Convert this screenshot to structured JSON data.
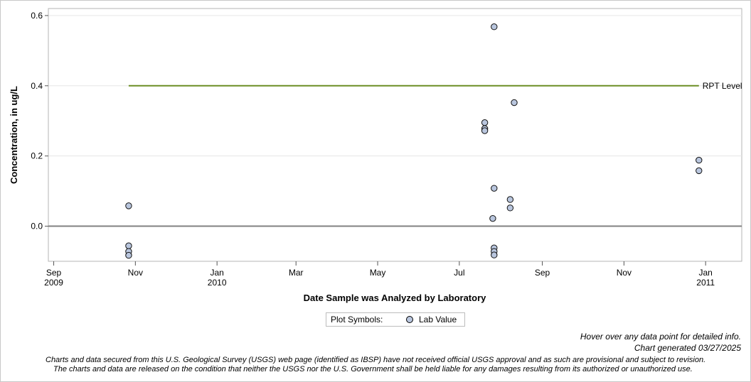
{
  "chart_data": {
    "type": "scatter",
    "title": "",
    "xlabel": "Date Sample was Analyzed by Laboratory",
    "ylabel": "Concentration, in ug/L",
    "x_range": [
      "2009-08-28",
      "2011-01-28"
    ],
    "ylim": [
      -0.1,
      0.62
    ],
    "y_ticks": [
      "0.0",
      "0.2",
      "0.4",
      "0.6"
    ],
    "y_tick_values": [
      0.0,
      0.2,
      0.4,
      0.6
    ],
    "x_ticks": [
      {
        "date": "2009-09-01",
        "line1": "Sep",
        "line2": "2009"
      },
      {
        "date": "2009-11-01",
        "line1": "Nov",
        "line2": ""
      },
      {
        "date": "2010-01-01",
        "line1": "Jan",
        "line2": "2010"
      },
      {
        "date": "2010-03-01",
        "line1": "Mar",
        "line2": ""
      },
      {
        "date": "2010-05-01",
        "line1": "May",
        "line2": ""
      },
      {
        "date": "2010-07-01",
        "line1": "Jul",
        "line2": ""
      },
      {
        "date": "2010-09-01",
        "line1": "Sep",
        "line2": ""
      },
      {
        "date": "2010-11-01",
        "line1": "Nov",
        "line2": ""
      },
      {
        "date": "2011-01-01",
        "line1": "Jan",
        "line2": "2011"
      }
    ],
    "grid": "horizontal",
    "reference_lines": [
      {
        "label": "RPT Level",
        "y": 0.4,
        "x_start": "2009-10-27",
        "x_end": "2010-12-27",
        "color": "#6b8e23"
      }
    ],
    "zero_line": {
      "y": 0.0,
      "color": "#808080"
    },
    "series": [
      {
        "name": "Lab Value",
        "marker_color": "#b9c6de",
        "points": [
          {
            "x": "2009-10-27",
            "y": 0.058
          },
          {
            "x": "2009-10-27",
            "y": -0.056
          },
          {
            "x": "2009-10-27",
            "y": -0.072
          },
          {
            "x": "2009-10-27",
            "y": -0.083
          },
          {
            "x": "2010-07-20",
            "y": 0.295
          },
          {
            "x": "2010-07-20",
            "y": 0.278
          },
          {
            "x": "2010-07-20",
            "y": 0.272
          },
          {
            "x": "2010-07-27",
            "y": 0.568
          },
          {
            "x": "2010-07-27",
            "y": 0.108
          },
          {
            "x": "2010-07-26",
            "y": 0.022
          },
          {
            "x": "2010-07-27",
            "y": -0.062
          },
          {
            "x": "2010-07-27",
            "y": -0.072
          },
          {
            "x": "2010-07-27",
            "y": -0.082
          },
          {
            "x": "2010-08-11",
            "y": 0.352
          },
          {
            "x": "2010-08-08",
            "y": 0.076
          },
          {
            "x": "2010-08-08",
            "y": 0.052
          },
          {
            "x": "2010-12-27",
            "y": 0.188
          },
          {
            "x": "2010-12-27",
            "y": 0.158
          }
        ]
      }
    ]
  },
  "legend": {
    "title": "Plot Symbols:",
    "entry": "Lab Value"
  },
  "notes": {
    "hover": "Hover over any data point for detailed info.",
    "generated": "Chart generated 03/27/2025"
  },
  "disclaimer": {
    "line1": "Charts and data secured from this U.S. Geological Survey (USGS) web page (identified as IBSP) have not received official USGS approval and as such are provisional and subject to revision.",
    "line2": "The charts and data are released on the condition that neither the USGS nor the U.S. Government shall be held liable for any damages resulting from its authorized or unauthorized use."
  }
}
